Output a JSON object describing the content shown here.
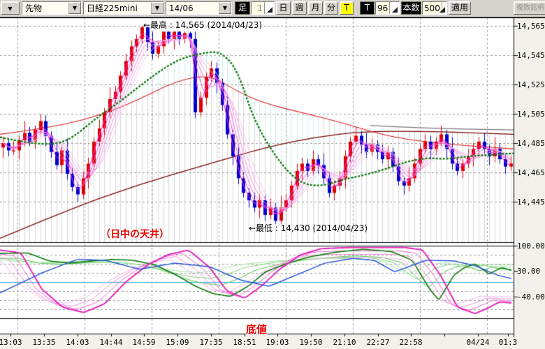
{
  "toolbar": {
    "window_dropdown_icon": "▼",
    "instrument_type_value": "先物",
    "instrument_value": "日経225mini",
    "contract_month_value": "14/06",
    "ashi_label": "足",
    "interval_value": "1",
    "period_buttons": [
      "日",
      "週",
      "月",
      "分",
      "T"
    ],
    "tick_label": "T",
    "tick_value": "96",
    "count_label": "本数",
    "count_value": "500",
    "apply_label": "適用",
    "multi_symbol_label": "複数銘柄"
  },
  "chart": {
    "annotations": {
      "high": "←最高 : 14,565 (2014/04/23)",
      "low": "←最低 : 14,430 (2014/04/23)",
      "ceiling": "（日中の天井）",
      "bottom": "底値"
    },
    "y_axis_labels": [
      "14,565",
      "14,545",
      "14,525",
      "14,505",
      "14,485",
      "14,465",
      "14,445"
    ],
    "osc_axis_labels": [
      "100.00",
      "30.00",
      "-40.00"
    ],
    "x_axis_labels": [
      "13:03",
      "13:35",
      "14:03",
      "14:44",
      "14:59",
      "15:09",
      "17:35",
      "18:51",
      "19:03",
      "19:50",
      "21:10",
      "22:27",
      "22:58",
      "",
      "04/24",
      "01:3"
    ]
  },
  "chart_data": {
    "type": "candlestick+oscillator",
    "symbol": "日経225mini 14/06",
    "session_high": 14565,
    "session_low": 14430,
    "extreme_date": "2014/04/23",
    "price_gridlines": [
      14565,
      14545,
      14525,
      14505,
      14485,
      14465,
      14445
    ],
    "closes": [
      14485,
      14480,
      14480,
      14487,
      14492,
      14486,
      14494,
      14500,
      14490,
      14479,
      14470,
      14480,
      14464,
      14455,
      14450,
      14461,
      14471,
      14486,
      14495,
      14506,
      14515,
      14520,
      14531,
      14541,
      14551,
      14556,
      14564,
      14554,
      14546,
      14551,
      14561,
      14556,
      14561,
      14556,
      14560,
      14556,
      14506,
      14516,
      14530,
      14536,
      14526,
      14511,
      14491,
      14476,
      14461,
      14451,
      14446,
      14441,
      14446,
      14436,
      14441,
      14432,
      14441,
      14446,
      14456,
      14466,
      14471,
      14466,
      14474,
      14470,
      14461,
      14451,
      14456,
      14461,
      14476,
      14486,
      14490,
      14484,
      14479,
      14484,
      14479,
      14474,
      14479,
      14469,
      14459,
      14456,
      14461,
      14471,
      14481,
      14486,
      14481,
      14486,
      14491,
      14481,
      14471,
      14466,
      14471,
      14476,
      14481,
      14486,
      14481,
      14476,
      14481,
      14474,
      14469,
      14471
    ],
    "first_open": 14482,
    "overlays": {
      "green_dotted_ma": {
        "x": [
          0,
          40,
          80,
          105,
          135,
          165,
          195,
          225,
          255,
          285,
          315,
          340,
          363,
          395,
          425,
          455,
          490,
          520,
          550,
          580,
          610,
          640,
          670,
          700,
          735
        ],
        "price": [
          14489,
          14485,
          14484,
          14489,
          14501,
          14511,
          14522,
          14533,
          14542,
          14546,
          14548,
          14535,
          14501,
          14475,
          14459,
          14455,
          14460,
          14463,
          14467,
          14472,
          14475,
          14474,
          14476,
          14477,
          14478
        ]
      },
      "red_ma": {
        "x": [
          0,
          80,
          150,
          200,
          250,
          300,
          340,
          380,
          430,
          490,
          550,
          620,
          735
        ],
        "price": [
          14491,
          14496,
          14505,
          14515,
          14527,
          14532,
          14520,
          14512,
          14506,
          14499,
          14490,
          14485,
          14481
        ]
      },
      "maroon_ma": {
        "x": [
          0,
          100,
          200,
          300,
          380,
          450,
          520,
          620,
          735
        ],
        "price": [
          14420,
          14440,
          14457,
          14471,
          14482,
          14489,
          14493,
          14493,
          14491
        ]
      },
      "gray_line": {
        "x": [
          530,
          620,
          735
        ],
        "price": [
          14497,
          14495,
          14494
        ]
      }
    },
    "oscillator": {
      "range": [
        -100,
        100
      ],
      "label_values": [
        100,
        30,
        -40
      ],
      "zero_line": 0,
      "series": [
        {
          "name": "rci-long-blue",
          "x": [
            0,
            60,
            110,
            150,
            200,
            250,
            300,
            345,
            385,
            425,
            465,
            505,
            535,
            565,
            610,
            650,
            680,
            710,
            735
          ],
          "v": [
            -30,
            25,
            62,
            60,
            35,
            52,
            42,
            5,
            -12,
            20,
            52,
            65,
            60,
            28,
            60,
            58,
            45,
            20,
            8
          ]
        },
        {
          "name": "rci-mid-darkgreen",
          "x": [
            0,
            40,
            70,
            100,
            130,
            160,
            190,
            220,
            250,
            280,
            305,
            330,
            355,
            380,
            410,
            440,
            480,
            520,
            560,
            590,
            615,
            628,
            650,
            665,
            680,
            700,
            718,
            735
          ],
          "v": [
            79,
            80,
            58,
            52,
            58,
            62,
            60,
            48,
            22,
            -12,
            -32,
            -40,
            -12,
            28,
            50,
            68,
            82,
            90,
            84,
            60,
            -20,
            -50,
            20,
            40,
            50,
            22,
            40,
            30
          ]
        },
        {
          "name": "rci-short-magenta",
          "x": [
            0,
            30,
            60,
            90,
            120,
            150,
            180,
            210,
            240,
            270,
            300,
            325,
            350,
            375,
            400,
            430,
            460,
            500,
            540,
            580,
            605,
            630,
            655,
            680,
            700,
            715,
            735
          ],
          "v": [
            88,
            80,
            -20,
            -70,
            -84,
            -60,
            0,
            45,
            75,
            88,
            40,
            -25,
            -45,
            -10,
            35,
            75,
            92,
            95,
            95,
            95,
            88,
            20,
            -70,
            -87,
            -70,
            -55,
            -58
          ]
        }
      ]
    }
  },
  "colors": {
    "candle_up": "#e00000",
    "candle_down": "#0000cd",
    "ribbon": [
      "#ff2ae4",
      "#f053dc",
      "#f372de",
      "#f691e4",
      "#f9aeec",
      "#fbc6f2"
    ],
    "green_ma": "#087508",
    "red_ma": "#e02020",
    "maroon_ma": "#7a0808",
    "gray_line": "#787878",
    "cloud": "#c9f3ef",
    "bar_hatch": "#d7d7d7",
    "grid": "#9c9c9c",
    "osc_blue": "#1f4fd8",
    "osc_darkgreen": "#0a7d0a",
    "osc_lightgreens": [
      "#55c455",
      "#7fd67f",
      "#a8e6a8"
    ],
    "osc_magenta": "#e520b8",
    "osc_pinks": [
      "#ef68d2",
      "#f48fde",
      "#f9b4ea"
    ],
    "osc_zero": "#2fa7e0"
  }
}
